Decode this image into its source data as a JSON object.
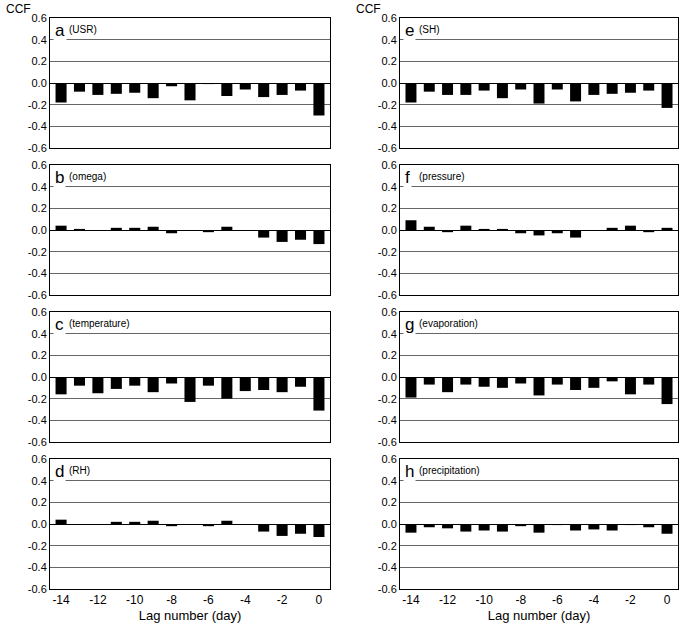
{
  "chart_data": [
    {
      "type": "bar",
      "title": "a",
      "subtitle": "(USR)",
      "y_label": "CCF",
      "color": "#000000",
      "grid": true,
      "tick_labels": "y",
      "x": [
        -14,
        -13,
        -12,
        -11,
        -10,
        -9,
        -8,
        -7,
        -6,
        -5,
        -4,
        -3,
        -2,
        -1,
        0
      ],
      "values": [
        -0.18,
        -0.08,
        -0.11,
        -0.1,
        -0.09,
        -0.14,
        -0.03,
        -0.16,
        -0.01,
        -0.12,
        -0.06,
        -0.13,
        -0.11,
        -0.07,
        -0.3
      ],
      "xlim": [
        -14.6,
        0.6
      ],
      "ylim": [
        -0.6,
        0.6
      ],
      "yticks": [
        -0.6,
        -0.4,
        -0.2,
        {
          "value": 0,
          "label": "0.0"
        },
        0.2,
        0.4,
        0.6
      ]
    },
    {
      "type": "bar",
      "title": "b",
      "subtitle": "(omega)",
      "color": "#000000",
      "grid": true,
      "tick_labels": "y",
      "x": [
        -14,
        -13,
        -12,
        -11,
        -10,
        -9,
        -8,
        -7,
        -6,
        -5,
        -4,
        -3,
        -2,
        -1,
        0
      ],
      "values": [
        0.04,
        0.01,
        0.0,
        0.02,
        0.02,
        0.03,
        -0.03,
        0.0,
        -0.02,
        0.03,
        0.0,
        -0.07,
        -0.11,
        -0.09,
        -0.13
      ],
      "xlim": [
        -14.6,
        0.6
      ],
      "ylim": [
        -0.6,
        0.6
      ],
      "yticks": [
        -0.6,
        -0.4,
        -0.2,
        {
          "value": 0,
          "label": "0.0"
        },
        0.2,
        0.4,
        0.6
      ]
    },
    {
      "type": "bar",
      "title": "c",
      "subtitle": "(temperature)",
      "color": "#000000",
      "grid": true,
      "tick_labels": "y",
      "x": [
        -14,
        -13,
        -12,
        -11,
        -10,
        -9,
        -8,
        -7,
        -6,
        -5,
        -4,
        -3,
        -2,
        -1,
        0
      ],
      "values": [
        -0.16,
        -0.08,
        -0.15,
        -0.11,
        -0.08,
        -0.14,
        -0.06,
        -0.23,
        -0.08,
        -0.2,
        -0.13,
        -0.12,
        -0.14,
        -0.09,
        -0.31
      ],
      "xlim": [
        -14.6,
        0.6
      ],
      "ylim": [
        -0.6,
        0.6
      ],
      "yticks": [
        -0.6,
        -0.4,
        -0.2,
        {
          "value": 0,
          "label": "0.0"
        },
        0.2,
        0.4,
        0.6
      ]
    },
    {
      "type": "bar",
      "title": "d",
      "subtitle": "(RH)",
      "x_label": "Lag number (day)",
      "color": "#000000",
      "grid": true,
      "x": [
        -14,
        -13,
        -12,
        -11,
        -10,
        -9,
        -8,
        -7,
        -6,
        -5,
        -4,
        -3,
        -2,
        -1,
        0
      ],
      "values": [
        0.04,
        0.0,
        0.0,
        0.02,
        0.02,
        0.03,
        -0.02,
        0.0,
        -0.02,
        0.03,
        0.0,
        -0.07,
        -0.11,
        -0.09,
        -0.12
      ],
      "xlim": [
        -14.6,
        0.6
      ],
      "ylim": [
        -0.6,
        0.6
      ],
      "xticks": [
        -14,
        -12,
        -10,
        -8,
        -6,
        -4,
        -2,
        0
      ],
      "yticks": [
        -0.6,
        -0.4,
        -0.2,
        {
          "value": 0,
          "label": "0.0"
        },
        0.2,
        0.4,
        0.6
      ]
    },
    {
      "type": "bar",
      "title": "e",
      "subtitle": "(SH)",
      "y_label": "CCF",
      "color": "#000000",
      "grid": true,
      "tick_labels": "y",
      "x": [
        -14,
        -13,
        -12,
        -11,
        -10,
        -9,
        -8,
        -7,
        -6,
        -5,
        -4,
        -3,
        -2,
        -1,
        0
      ],
      "values": [
        -0.18,
        -0.08,
        -0.11,
        -0.11,
        -0.07,
        -0.14,
        -0.06,
        -0.19,
        -0.06,
        -0.17,
        -0.11,
        -0.1,
        -0.09,
        -0.07,
        -0.23
      ],
      "xlim": [
        -14.6,
        0.6
      ],
      "ylim": [
        -0.6,
        0.6
      ],
      "yticks": [
        -0.6,
        -0.4,
        -0.2,
        {
          "value": 0,
          "label": "0.0"
        },
        0.2,
        0.4,
        0.6
      ]
    },
    {
      "type": "bar",
      "title": "f",
      "subtitle": "(pressure)",
      "color": "#000000",
      "grid": true,
      "tick_labels": "y",
      "x": [
        -14,
        -13,
        -12,
        -11,
        -10,
        -9,
        -8,
        -7,
        -6,
        -5,
        -4,
        -3,
        -2,
        -1,
        0
      ],
      "values": [
        0.09,
        0.03,
        -0.02,
        0.04,
        0.01,
        0.01,
        -0.03,
        -0.05,
        -0.03,
        -0.07,
        0.0,
        0.02,
        0.04,
        -0.02,
        0.02
      ],
      "xlim": [
        -14.6,
        0.6
      ],
      "ylim": [
        -0.6,
        0.6
      ],
      "yticks": [
        -0.6,
        -0.4,
        -0.2,
        {
          "value": 0,
          "label": "0.0"
        },
        0.2,
        0.4,
        0.6
      ]
    },
    {
      "type": "bar",
      "title": "g",
      "subtitle": "(evaporation)",
      "color": "#000000",
      "grid": true,
      "tick_labels": "y",
      "x": [
        -14,
        -13,
        -12,
        -11,
        -10,
        -9,
        -8,
        -7,
        -6,
        -5,
        -4,
        -3,
        -2,
        -1,
        0
      ],
      "values": [
        -0.19,
        -0.07,
        -0.14,
        -0.07,
        -0.09,
        -0.1,
        -0.06,
        -0.17,
        -0.07,
        -0.12,
        -0.1,
        -0.04,
        -0.16,
        -0.07,
        -0.25
      ],
      "xlim": [
        -14.6,
        0.6
      ],
      "ylim": [
        -0.6,
        0.6
      ],
      "yticks": [
        -0.6,
        -0.4,
        -0.2,
        {
          "value": 0,
          "label": "0.0"
        },
        0.2,
        0.4,
        0.6
      ]
    },
    {
      "type": "bar",
      "title": "h",
      "subtitle": "(precipitation)",
      "x_label": "Lag number (day)",
      "color": "#000000",
      "grid": true,
      "x": [
        -14,
        -13,
        -12,
        -11,
        -10,
        -9,
        -8,
        -7,
        -6,
        -5,
        -4,
        -3,
        -2,
        -1,
        0
      ],
      "values": [
        -0.08,
        -0.03,
        -0.04,
        -0.07,
        -0.06,
        -0.07,
        -0.02,
        -0.08,
        -0.01,
        -0.06,
        -0.05,
        -0.06,
        -0.01,
        -0.03,
        -0.09
      ],
      "xlim": [
        -14.6,
        0.6
      ],
      "ylim": [
        -0.6,
        0.6
      ],
      "xticks": [
        -14,
        -12,
        -10,
        -8,
        -6,
        -4,
        -2,
        0
      ],
      "yticks": [
        -0.6,
        -0.4,
        -0.2,
        {
          "value": 0,
          "label": "0.0"
        },
        0.2,
        0.4,
        0.6
      ]
    }
  ]
}
